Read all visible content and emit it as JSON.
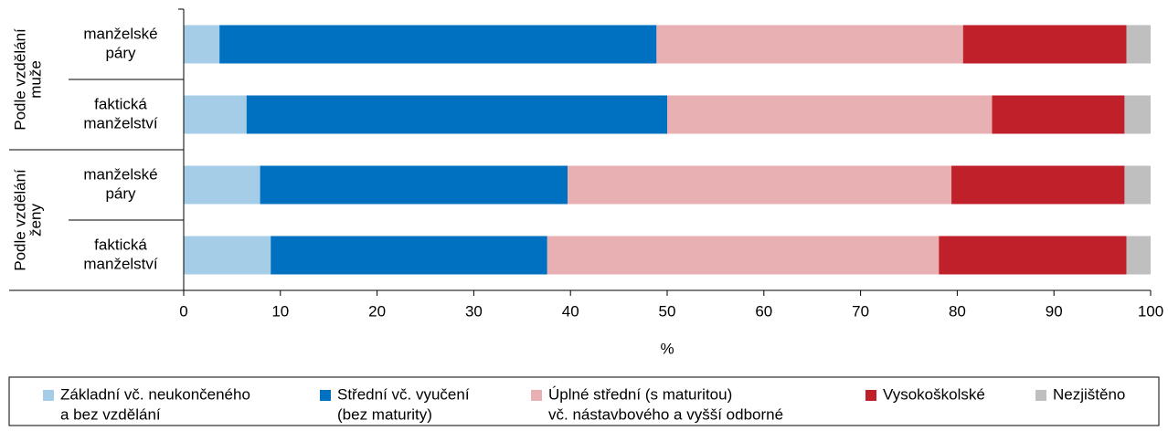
{
  "chart_data": {
    "type": "stacked-barh",
    "groups": [
      {
        "label": [
          "Podle vzdělání",
          "muže"
        ],
        "categories": [
          [
            "manželské",
            "páry"
          ],
          [
            "faktická",
            "manželství"
          ]
        ]
      },
      {
        "label": [
          "Podle vzdělání",
          "ženy"
        ],
        "categories": [
          [
            "manželské",
            "páry"
          ],
          [
            "faktická",
            "manželství"
          ]
        ]
      }
    ],
    "series": [
      {
        "name": [
          "Základní vč. neukončeného",
          "a bez vzdělání"
        ],
        "color": "#a6cde8",
        "values": [
          3.7,
          6.5,
          7.9,
          9.0
        ]
      },
      {
        "name": [
          "Střední vč. vyučení",
          "(bez maturity)"
        ],
        "color": "#0070c0",
        "values": [
          45.2,
          43.5,
          31.8,
          28.6
        ]
      },
      {
        "name": [
          "Úplné střední (s maturitou)",
          "vč. nástavbového a vyšší odborné"
        ],
        "color": "#e8b0b3",
        "values": [
          31.7,
          33.6,
          39.7,
          40.5
        ]
      },
      {
        "name": [
          "Vysokoškolské"
        ],
        "color": "#c0202a",
        "values": [
          16.9,
          13.7,
          17.9,
          19.4
        ]
      },
      {
        "name": [
          "Nezjištěno"
        ],
        "color": "#bfbfbf",
        "values": [
          2.5,
          2.7,
          2.7,
          2.5
        ]
      }
    ],
    "xlabel": "%",
    "xlim": [
      0,
      100
    ],
    "xticks": [
      0,
      10,
      20,
      30,
      40,
      50,
      60,
      70,
      80,
      90,
      100
    ]
  }
}
